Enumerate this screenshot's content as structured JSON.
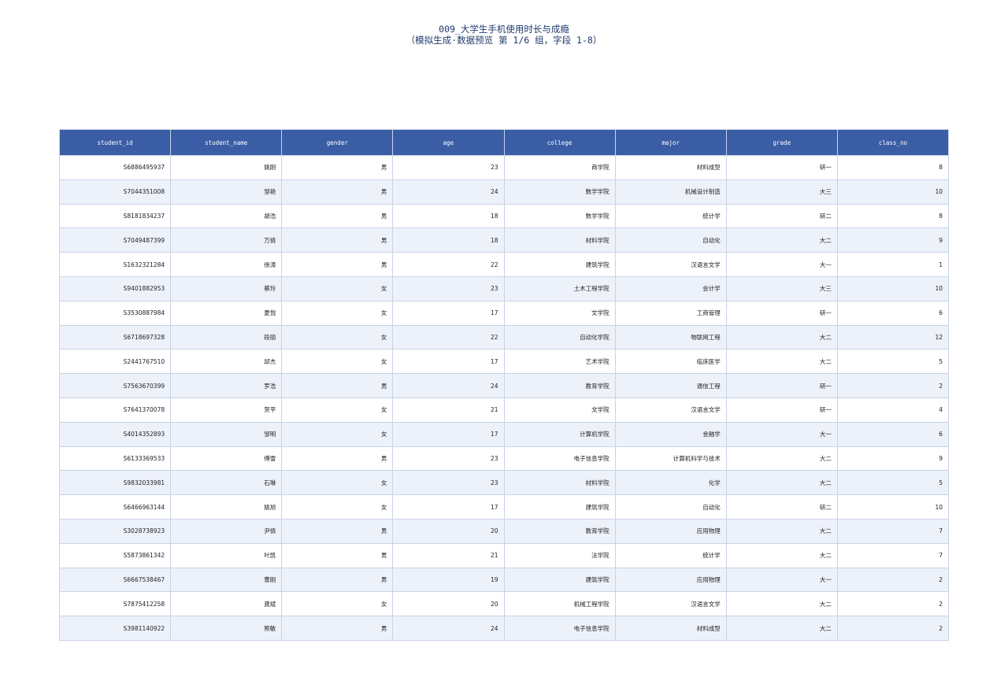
{
  "header": {
    "title": "009_大学生手机使用时长与成瘾",
    "subtitle": "（模拟生成·数据预览 第 1/6 组，字段 1-8）"
  },
  "table": {
    "columns": [
      "student_id",
      "student_name",
      "gender",
      "age",
      "college",
      "major",
      "grade",
      "class_no"
    ],
    "rows": [
      [
        "S6886495937",
        "姚刚",
        "男",
        23,
        "商学院",
        "材料成型",
        "研一",
        8
      ],
      [
        "S7044351008",
        "邹艳",
        "男",
        24,
        "数学学院",
        "机械设计制造",
        "大三",
        10
      ],
      [
        "S8181834237",
        "胡浩",
        "男",
        18,
        "数学学院",
        "统计学",
        "研二",
        8
      ],
      [
        "S7049487399",
        "万倩",
        "男",
        18,
        "材料学院",
        "自动化",
        "大二",
        9
      ],
      [
        "S1632321284",
        "徐涛",
        "男",
        22,
        "建筑学院",
        "汉语言文学",
        "大一",
        1
      ],
      [
        "S9401882953",
        "蔡玲",
        "女",
        23,
        "土木工程学院",
        "会计学",
        "大三",
        10
      ],
      [
        "S3530887984",
        "夏悦",
        "女",
        17,
        "文学院",
        "工商管理",
        "研一",
        6
      ],
      [
        "S6718697328",
        "段丽",
        "女",
        22,
        "自动化学院",
        "物联网工程",
        "大二",
        12
      ],
      [
        "S2441767510",
        "邱杰",
        "女",
        17,
        "艺术学院",
        "临床医学",
        "大二",
        5
      ],
      [
        "S7563670399",
        "罗浩",
        "男",
        24,
        "教育学院",
        "通信工程",
        "研一",
        2
      ],
      [
        "S7641370078",
        "贺平",
        "女",
        21,
        "文学院",
        "汉语言文学",
        "研一",
        4
      ],
      [
        "S4014352893",
        "邹明",
        "女",
        17,
        "计算机学院",
        "金融学",
        "大一",
        6
      ],
      [
        "S6133369533",
        "傅雪",
        "男",
        23,
        "电子信息学院",
        "计算机科学与技术",
        "大二",
        9
      ],
      [
        "S9832033981",
        "石琳",
        "女",
        23,
        "材料学院",
        "化学",
        "大二",
        5
      ],
      [
        "S6466963144",
        "姚旭",
        "女",
        17,
        "建筑学院",
        "自动化",
        "研二",
        10
      ],
      [
        "S3028738923",
        "尹倩",
        "男",
        20,
        "教育学院",
        "应用物理",
        "大二",
        7
      ],
      [
        "S5873861342",
        "叶凯",
        "男",
        21,
        "法学院",
        "统计学",
        "大二",
        7
      ],
      [
        "S6667538467",
        "曹刚",
        "男",
        19,
        "建筑学院",
        "应用物理",
        "大一",
        2
      ],
      [
        "S7875412258",
        "龚斌",
        "女",
        20,
        "机械工程学院",
        "汉语言文学",
        "大二",
        2
      ],
      [
        "S3981140922",
        "熊敏",
        "男",
        24,
        "电子信息学院",
        "材料成型",
        "大二",
        2
      ]
    ]
  }
}
